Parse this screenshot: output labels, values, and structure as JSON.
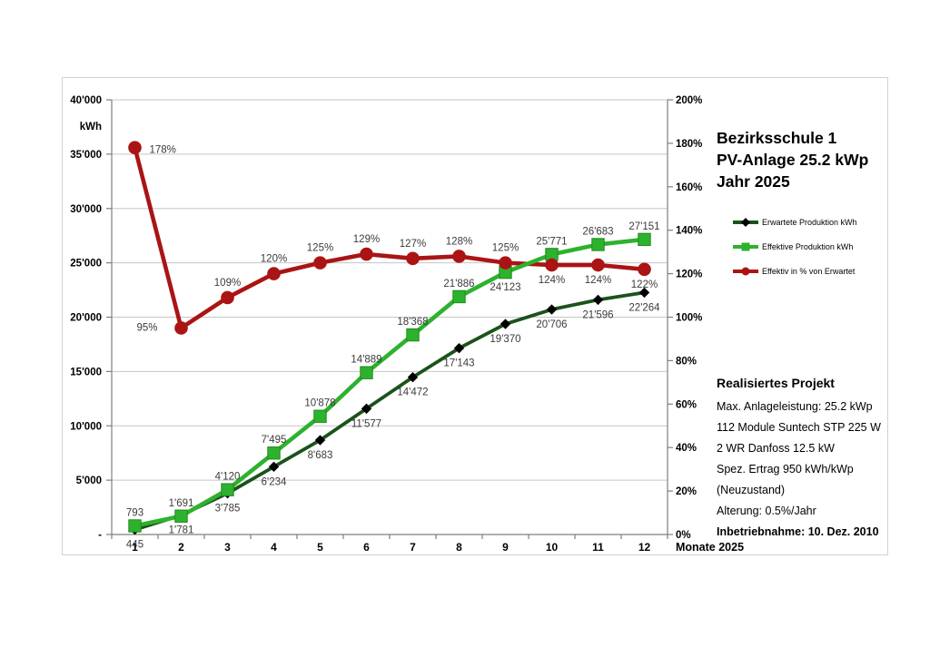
{
  "header": {
    "title_lines": [
      "Bezirksschule 1",
      "PV-Anlage 25.2 kWp",
      "Jahr 2025"
    ]
  },
  "info_panel": {
    "heading": "Realisiertes Projekt",
    "lines": [
      "Max. Anlageleistung: 25.2 kWp",
      "112 Module Suntech STP 225 W",
      "2 WR Danfoss 12.5 kW",
      "Spez. Ertrag 950 kWh/kWp",
      "(Neuzustand)",
      "Alterung: 0.5%/Jahr"
    ],
    "commissioning": "Inbetriebnahme: 10. Dez. 2010"
  },
  "axis": {
    "left_unit": "kWh",
    "left_ticks": [
      "-",
      "5'000",
      "10'000",
      "15'000",
      "20'000",
      "25'000",
      "30'000",
      "35'000",
      "40'000"
    ],
    "right_ticks": [
      "0%",
      "20%",
      "40%",
      "60%",
      "80%",
      "100%",
      "120%",
      "140%",
      "160%",
      "180%",
      "200%"
    ],
    "x_ticks": [
      "1",
      "2",
      "3",
      "4",
      "5",
      "6",
      "7",
      "8",
      "9",
      "10",
      "11",
      "12"
    ],
    "x_axis_label": "Monate 2025"
  },
  "colors": {
    "expected_line": "#1c521c",
    "expected_marker": "#000000",
    "effective_line": "#2db22d",
    "effective_marker_border": "#1f8a1f",
    "percent_line": "#aa1414",
    "gridline": "#c6c6c6",
    "axis_line": "#7f7f7f",
    "data_label": "#3b3b3b",
    "axis_label": "#000000"
  },
  "chart_data": {
    "type": "line",
    "title": "Bezirksschule 1 PV-Anlage 25.2 kWp Jahr 2025",
    "categories": [
      1,
      2,
      3,
      4,
      5,
      6,
      7,
      8,
      9,
      10,
      11,
      12
    ],
    "xlabel": "Monate 2025",
    "grid": true,
    "legend_position": "right",
    "left_axis": {
      "label": "kWh",
      "min": 0,
      "max": 40000,
      "gridline_step": 5000
    },
    "right_axis": {
      "label": "%",
      "min": 0,
      "max": 200,
      "tick_step": 20
    },
    "series": [
      {
        "name": "Erwartete Produktion kWh",
        "axis": "left",
        "color": "#1c521c",
        "marker": "diamond",
        "marker_color": "#000000",
        "values": [
          445,
          1781,
          3785,
          6234,
          8683,
          11577,
          14472,
          17143,
          19370,
          20706,
          21596,
          22264
        ],
        "labels": [
          "445",
          "1'781",
          "3'785",
          "6'234",
          "8'683",
          "11'577",
          "14'472",
          "17'143",
          "19'370",
          "20'706",
          "21'596",
          "22'264"
        ],
        "label_pos": [
          "below",
          "below",
          "below",
          "below",
          "below",
          "below",
          "below",
          "below",
          "below",
          "below",
          "below",
          "below"
        ]
      },
      {
        "name": "Effektive Produktion kWh",
        "axis": "left",
        "color": "#2db22d",
        "marker": "square",
        "marker_color": "#2db22d",
        "values": [
          793,
          1691,
          4120,
          7495,
          10878,
          14889,
          18368,
          21886,
          24123,
          25771,
          26683,
          27151
        ],
        "labels": [
          "793",
          "1'691",
          "4'120",
          "7'495",
          "10'878",
          "14'889",
          "18'368",
          "21'886",
          "24'123",
          "25'771",
          "26'683",
          "27'151"
        ],
        "label_pos": [
          "above",
          "above",
          "above",
          "above",
          "above",
          "above",
          "above",
          "above",
          "below",
          "above",
          "above",
          "above"
        ]
      },
      {
        "name": "Effektiv in % von Erwartet",
        "axis": "right",
        "color": "#aa1414",
        "marker": "circle",
        "marker_color": "#aa1414",
        "values": [
          178,
          95,
          109,
          120,
          125,
          129,
          127,
          128,
          125,
          124,
          124,
          122
        ],
        "labels": [
          "178%",
          "95%",
          "109%",
          "120%",
          "125%",
          "129%",
          "127%",
          "128%",
          "125%",
          "124%",
          "124%",
          "122%"
        ],
        "label_pos": [
          "right",
          "left",
          "above",
          "above",
          "above",
          "above",
          "above",
          "above",
          "above",
          "below",
          "below",
          "below"
        ]
      }
    ]
  }
}
